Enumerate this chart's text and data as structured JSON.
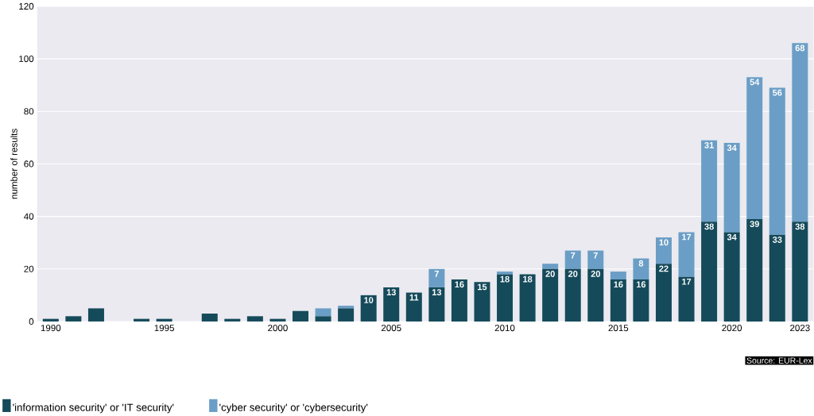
{
  "chart_data": {
    "type": "bar",
    "stacked": true,
    "ylabel": "number of results",
    "x": [
      1990,
      1991,
      1992,
      1993,
      1994,
      1995,
      1996,
      1997,
      1998,
      1999,
      2000,
      2001,
      2002,
      2003,
      2004,
      2005,
      2006,
      2007,
      2008,
      2009,
      2010,
      2011,
      2012,
      2013,
      2014,
      2015,
      2016,
      2017,
      2018,
      2019,
      2020,
      2021,
      2022,
      2023
    ],
    "series": [
      {
        "name": "'information security' or 'IT security'",
        "color": "#154a5a",
        "values": [
          1,
          2,
          5,
          0,
          1,
          1,
          0,
          3,
          1,
          2,
          1,
          4,
          2,
          5,
          10,
          13,
          11,
          13,
          16,
          15,
          18,
          18,
          20,
          20,
          20,
          16,
          16,
          22,
          17,
          38,
          34,
          39,
          33,
          38
        ],
        "value_labels": [
          null,
          null,
          null,
          null,
          null,
          null,
          null,
          null,
          null,
          null,
          null,
          null,
          null,
          null,
          "10",
          "13",
          "11",
          "13",
          "16",
          "15",
          "18",
          "18",
          "20",
          "20",
          "20",
          "16",
          "16",
          "22",
          "17",
          "38",
          "34",
          "39",
          "33",
          "38"
        ]
      },
      {
        "name": "'cyber security' or 'cybersecurity'",
        "color": "#6b9ec6",
        "values": [
          0,
          0,
          0,
          0,
          0,
          0,
          0,
          0,
          0,
          0,
          0,
          0,
          3,
          1,
          0,
          0,
          0,
          7,
          0,
          0,
          1,
          0,
          2,
          7,
          7,
          3,
          8,
          10,
          17,
          31,
          34,
          54,
          56,
          68
        ],
        "value_labels": [
          null,
          null,
          null,
          null,
          null,
          null,
          null,
          null,
          null,
          null,
          null,
          null,
          null,
          null,
          null,
          null,
          null,
          "7",
          null,
          null,
          null,
          null,
          null,
          "7",
          "7",
          null,
          "8",
          "10",
          "17",
          "31",
          "34",
          "54",
          "56",
          "68"
        ]
      }
    ],
    "xlim": [
      1989.4,
      2023.6
    ],
    "xticks": [
      1990,
      1995,
      2000,
      2005,
      2010,
      2015,
      2020,
      2023
    ],
    "ylim": [
      0,
      120
    ],
    "yticks": [
      0,
      20,
      40,
      60,
      80,
      100,
      120
    ],
    "grid": "y",
    "legend": "bottom",
    "annotations": [
      "Source: EUR-Lex"
    ]
  }
}
